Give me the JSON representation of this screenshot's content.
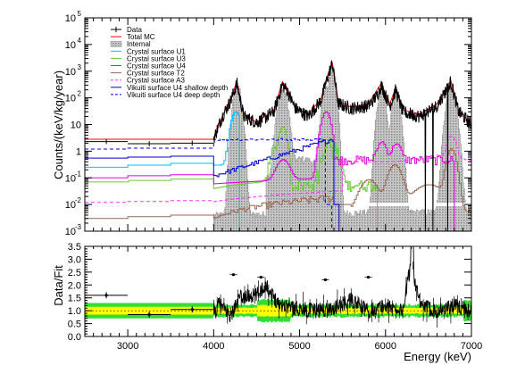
{
  "chart_data": [
    {
      "type": "line",
      "title": "",
      "xlabel": "",
      "ylabel": "Counts/(keV/kg/year)",
      "xlim": [
        2500,
        7000
      ],
      "ylim": [
        0.001,
        100000
      ],
      "yscale": "log",
      "legend_position": "top-left",
      "y_ticks": [
        {
          "v": 0.001,
          "label": "10",
          "exp": "-3"
        },
        {
          "v": 0.01,
          "label": "10",
          "exp": "-2"
        },
        {
          "v": 0.1,
          "label": "10",
          "exp": "-1"
        },
        {
          "v": 1,
          "label": "1",
          "exp": ""
        },
        {
          "v": 10,
          "label": "10",
          "exp": ""
        },
        {
          "v": 100,
          "label": "10",
          "exp": "2"
        },
        {
          "v": 1000,
          "label": "10",
          "exp": "3"
        },
        {
          "v": 10000,
          "label": "10",
          "exp": "4"
        },
        {
          "v": 100000,
          "label": "10",
          "exp": "5"
        }
      ],
      "series": [
        {
          "name": "Data",
          "color": "#000000",
          "style": "data"
        },
        {
          "name": "Total MC",
          "color": "#ff0000",
          "style": "solid"
        },
        {
          "name": "Internal",
          "color": "#a9a9a9",
          "style": "hatched"
        },
        {
          "name": "Crystal surface U1",
          "color": "#00bfff",
          "style": "solid"
        },
        {
          "name": "Crystal surface U3",
          "color": "#66cc33",
          "style": "solid"
        },
        {
          "name": "Crystal surface U4",
          "color": "#e000e0",
          "style": "solid"
        },
        {
          "name": "Crystal surface T2",
          "color": "#996655",
          "style": "solid"
        },
        {
          "name": "Crystal surface A3",
          "color": "#ff33ff",
          "style": "dashed"
        },
        {
          "name": "Vikuiti surface U4 shallow depth",
          "color": "#0000cc",
          "style": "solid"
        },
        {
          "name": "Vikuiti surface U4 deep depth",
          "color": "#0000ff",
          "style": "dashed"
        }
      ],
      "data_points": [
        [
          2750,
          2.3
        ],
        [
          3250,
          1.9
        ],
        [
          3750,
          2.0
        ],
        [
          4000,
          3
        ],
        [
          4100,
          20
        ],
        [
          4200,
          80
        ],
        [
          4270,
          350
        ],
        [
          4350,
          20
        ],
        [
          4500,
          12
        ],
        [
          4600,
          18
        ],
        [
          4700,
          30
        ],
        [
          4800,
          300
        ],
        [
          4850,
          200
        ],
        [
          4950,
          40
        ],
        [
          5100,
          20
        ],
        [
          5250,
          80
        ],
        [
          5300,
          300
        ],
        [
          5380,
          2000
        ],
        [
          5450,
          60
        ],
        [
          5600,
          40
        ],
        [
          5800,
          50
        ],
        [
          5900,
          120
        ],
        [
          5950,
          300
        ],
        [
          6050,
          50
        ],
        [
          6120,
          200
        ],
        [
          6200,
          30
        ],
        [
          6400,
          20
        ],
        [
          6600,
          50
        ],
        [
          6760,
          400
        ],
        [
          6850,
          30
        ],
        [
          7000,
          10
        ]
      ],
      "total_mc": [
        [
          2500,
          2.8
        ],
        [
          4000,
          2.8
        ],
        [
          4100,
          20
        ],
        [
          4200,
          100
        ],
        [
          4270,
          400
        ],
        [
          4350,
          25
        ],
        [
          4500,
          12
        ],
        [
          4700,
          35
        ],
        [
          4800,
          400
        ],
        [
          4850,
          250
        ],
        [
          4950,
          40
        ],
        [
          5100,
          25
        ],
        [
          5250,
          90
        ],
        [
          5300,
          400
        ],
        [
          5380,
          2200
        ],
        [
          5450,
          70
        ],
        [
          5600,
          45
        ],
        [
          5800,
          60
        ],
        [
          5950,
          350
        ],
        [
          6050,
          60
        ],
        [
          6120,
          250
        ],
        [
          6200,
          35
        ],
        [
          6400,
          25
        ],
        [
          6600,
          60
        ],
        [
          6760,
          450
        ],
        [
          6850,
          35
        ],
        [
          7000,
          10
        ]
      ]
    },
    {
      "type": "line",
      "title": "",
      "xlabel": "Energy (keV)",
      "ylabel": "Data/Fit",
      "xlim": [
        2500,
        7000
      ],
      "ylim": [
        0,
        3.5
      ],
      "x_ticks": [
        {
          "v": 3000,
          "label": "3000"
        },
        {
          "v": 4000,
          "label": "4000"
        },
        {
          "v": 5000,
          "label": "5000"
        },
        {
          "v": 6000,
          "label": "6000"
        },
        {
          "v": 7000,
          "label": "7000"
        }
      ],
      "y_ticks": [
        {
          "v": 0,
          "label": "0.0"
        },
        {
          "v": 0.5,
          "label": "0.5"
        },
        {
          "v": 1.0,
          "label": "1.0"
        },
        {
          "v": 1.5,
          "label": "1.5"
        },
        {
          "v": 2.0,
          "label": "2.0"
        },
        {
          "v": 2.5,
          "label": "2.5"
        },
        {
          "v": 3.0,
          "label": "3.0"
        },
        {
          "v": 3.5,
          "label": "3.5"
        }
      ],
      "bands": [
        {
          "name": "2 sigma",
          "color": "#33dd33"
        },
        {
          "name": "1 sigma",
          "color": "#ffff00"
        }
      ],
      "ratio_points": [
        [
          2750,
          1.6
        ],
        [
          3250,
          0.85
        ],
        [
          3750,
          1.05
        ],
        [
          4050,
          1.3
        ],
        [
          4200,
          0.8
        ],
        [
          4300,
          1.5
        ],
        [
          4500,
          1.6
        ],
        [
          4600,
          2.0
        ],
        [
          4750,
          1.3
        ],
        [
          4950,
          1.1
        ],
        [
          5200,
          1.0
        ],
        [
          5400,
          1.1
        ],
        [
          5600,
          1.4
        ],
        [
          5800,
          1.0
        ],
        [
          6000,
          1.2
        ],
        [
          6200,
          1.0
        ],
        [
          6300,
          2.9
        ],
        [
          6400,
          1.2
        ],
        [
          6600,
          1.0
        ],
        [
          6800,
          1.2
        ],
        [
          7000,
          1.0
        ]
      ]
    }
  ]
}
